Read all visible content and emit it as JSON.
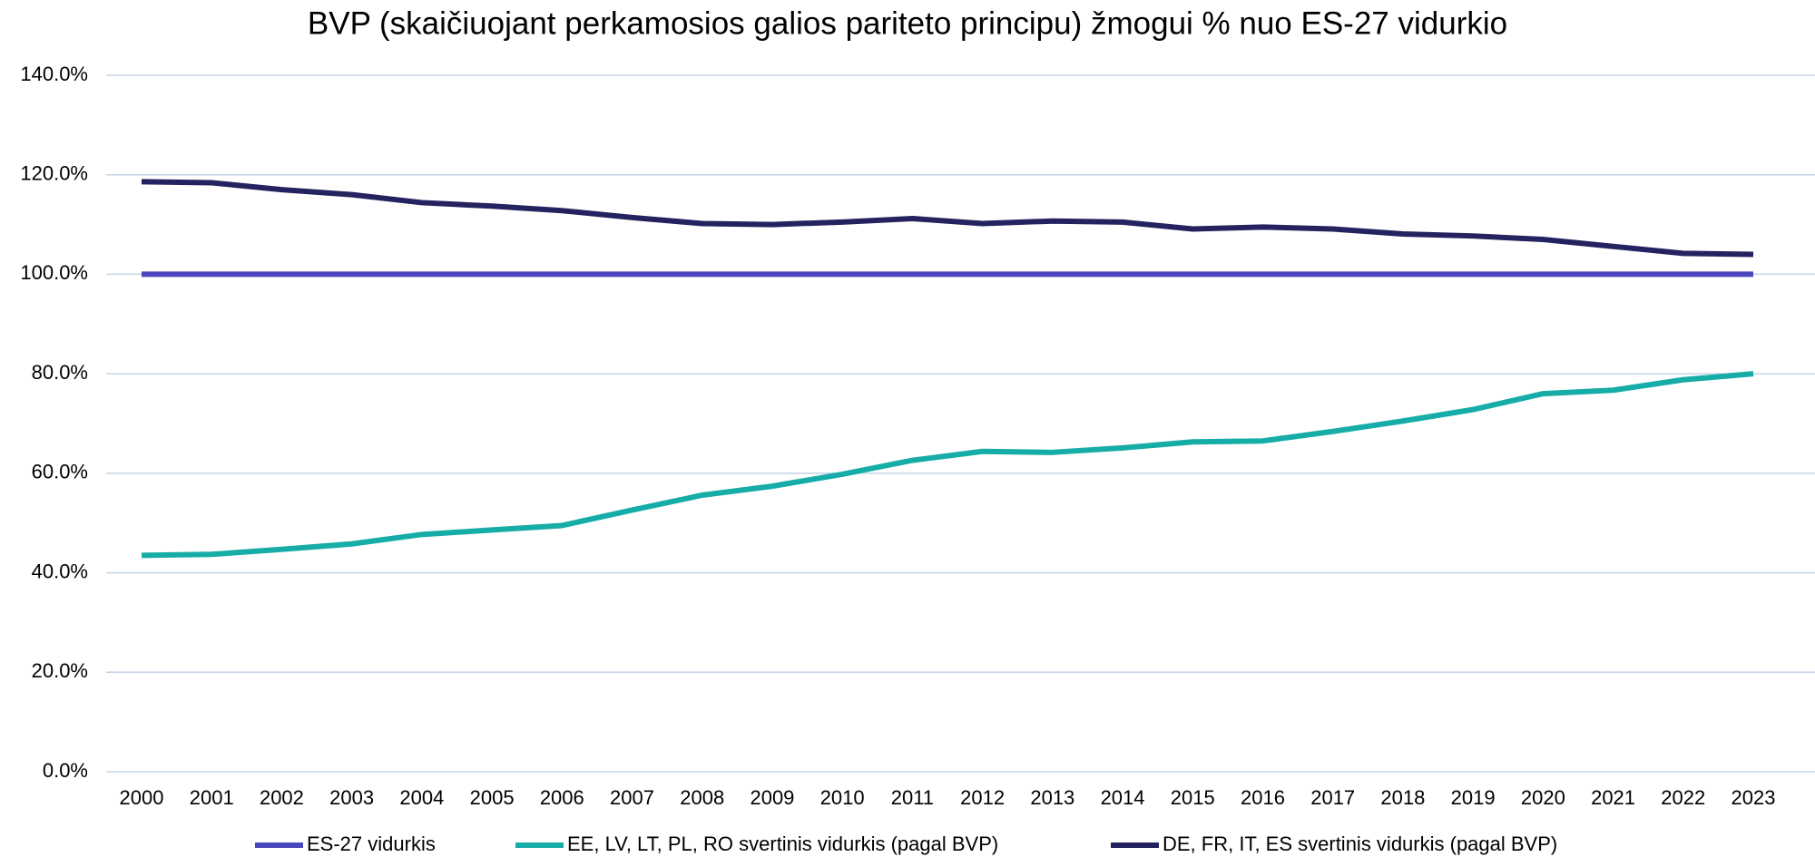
{
  "chart_data": {
    "type": "line",
    "title": "BVP (skaičiuojant perkamosios galios pariteto principu) žmogui % nuo ES-27 vidurkio",
    "categories": [
      "2000",
      "2001",
      "2002",
      "2003",
      "2004",
      "2005",
      "2006",
      "2007",
      "2008",
      "2009",
      "2010",
      "2011",
      "2012",
      "2013",
      "2014",
      "2015",
      "2016",
      "2017",
      "2018",
      "2019",
      "2020",
      "2021",
      "2022",
      "2023"
    ],
    "series": [
      {
        "name": "ES-27 vidurkis",
        "color": "#4a47bd",
        "values": [
          100,
          100,
          100,
          100,
          100,
          100,
          100,
          100,
          100,
          100,
          100,
          100,
          100,
          100,
          100,
          100,
          100,
          100,
          100,
          100,
          100,
          100,
          100,
          100
        ]
      },
      {
        "name": "EE, LV, LT, PL, RO svertinis vidurkis (pagal BVP)",
        "color": "#16aca7",
        "values": [
          43.5,
          43.7,
          44.7,
          45.8,
          47.7,
          48.6,
          49.5,
          52.6,
          55.6,
          57.4,
          59.8,
          62.6,
          64.4,
          64.2,
          65.1,
          66.3,
          66.5,
          68.4,
          70.5,
          72.8,
          76.0,
          76.7,
          78.8,
          80.0
        ]
      },
      {
        "name": "DE, FR, IT, ES svertinis vidurkis (pagal BVP)",
        "color": "#24235f",
        "values": [
          118.6,
          118.4,
          117.0,
          116.0,
          114.4,
          113.7,
          112.8,
          111.4,
          110.2,
          110.0,
          110.5,
          111.2,
          110.2,
          110.7,
          110.5,
          109.1,
          109.5,
          109.1,
          108.1,
          107.7,
          107.0,
          105.6,
          104.2,
          104.0
        ]
      }
    ],
    "ylim": [
      0,
      140
    ],
    "yticks": [
      {
        "value": 0,
        "label": "0.0%"
      },
      {
        "value": 20,
        "label": "20.0%"
      },
      {
        "value": 40,
        "label": "40.0%"
      },
      {
        "value": 60,
        "label": "60.0%"
      },
      {
        "value": 80,
        "label": "80.0%"
      },
      {
        "value": 100,
        "label": "100.0%"
      },
      {
        "value": 120,
        "label": "120.0%"
      },
      {
        "value": 140,
        "label": "140.0%"
      }
    ],
    "grid": true,
    "legend": "bottom"
  }
}
